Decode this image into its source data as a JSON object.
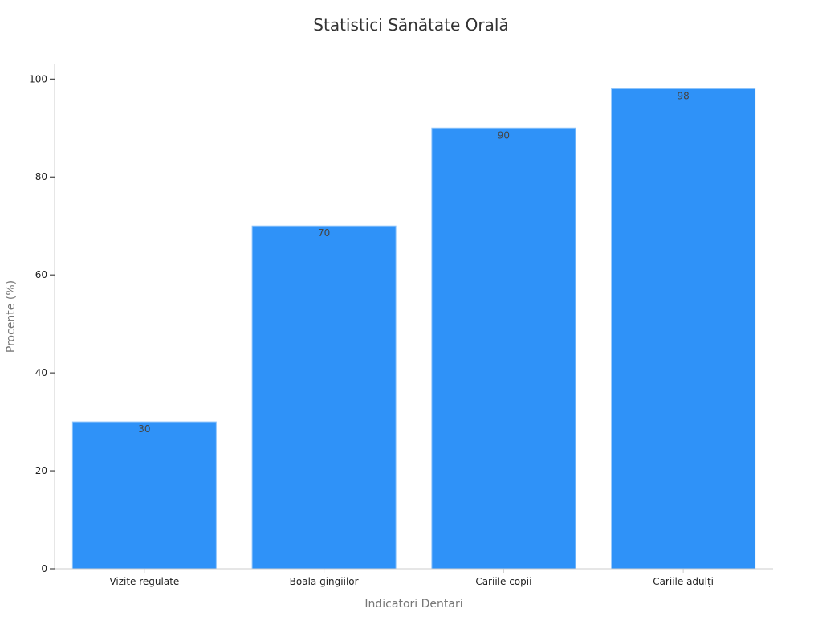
{
  "chart_data": {
    "type": "bar",
    "title": "Statistici Sănătate Orală",
    "xlabel": "Indicatori Dentari",
    "ylabel": "Procente (%)",
    "categories": [
      "Vizite regulate",
      "Boala gingiilor",
      "Cariile copii",
      "Cariile adulți"
    ],
    "values": [
      30,
      70,
      90,
      98
    ],
    "ylim": [
      0,
      103
    ],
    "yticks": [
      0,
      20,
      40,
      60,
      80,
      100
    ],
    "grid": false,
    "legend": "none",
    "colors": {
      "bar": "#2f92f8",
      "bar_edge": "#8ec4fb",
      "axis": "#cccccc",
      "tick_text": "#222222",
      "axis_title": "#777777",
      "title": "#333333",
      "data_label": "#444444"
    }
  }
}
